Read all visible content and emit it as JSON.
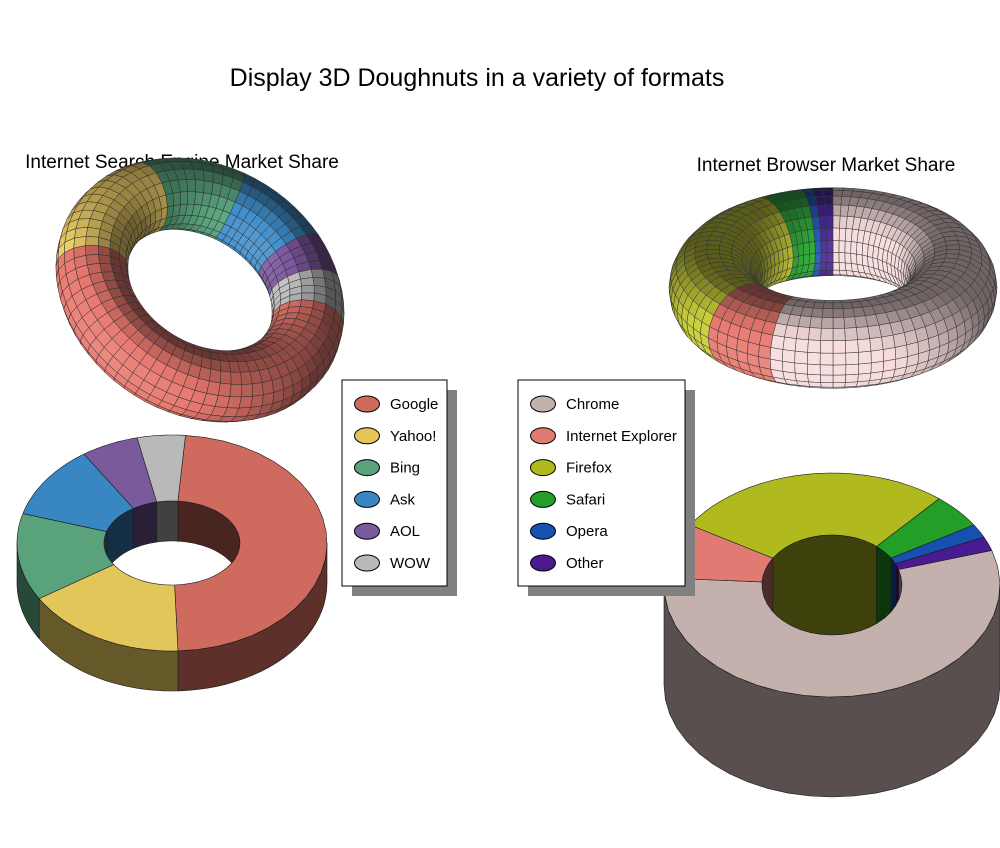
{
  "page": {
    "title": "Display 3D Doughnuts in a variety of formats"
  },
  "chart_data": [
    {
      "type": "pie",
      "title": "Internet Search Engine Market Share",
      "style": "torus",
      "categories": [
        "Google",
        "Yahoo!",
        "Bing",
        "Ask",
        "AOL",
        "WOW"
      ],
      "values": [
        48,
        17,
        13,
        11,
        6,
        5
      ],
      "colors": [
        "#e8786e",
        "#f3d46a",
        "#5aa47e",
        "#3f8ecb",
        "#7d55a0",
        "#bfbfbf"
      ]
    },
    {
      "type": "pie",
      "title": "",
      "style": "ring",
      "categories": [
        "Google",
        "Yahoo!",
        "Bing",
        "Ask",
        "AOL",
        "WOW"
      ],
      "values": [
        48,
        17,
        13,
        11,
        6,
        5
      ],
      "colors": [
        "#cf6a5e",
        "#e2c65a",
        "#5aa27c",
        "#3887c2",
        "#7a5a9c",
        "#b9b9b9"
      ],
      "legend": {
        "position": "between-charts",
        "entries": [
          "Google",
          "Yahoo!",
          "Bing",
          "Ask",
          "AOL",
          "WOW"
        ]
      }
    },
    {
      "type": "pie",
      "title": "Internet Browser Market Share",
      "style": "torus",
      "categories": [
        "Chrome",
        "Internet Explorer",
        "Firefox",
        "Safari",
        "Opera",
        "Other"
      ],
      "values": [
        56,
        8,
        27,
        5,
        2,
        2
      ],
      "colors": [
        "#f7dcdc",
        "#e8786e",
        "#c9cf3a",
        "#2faa3a",
        "#2a58b8",
        "#4a2a9a"
      ]
    },
    {
      "type": "pie",
      "title": "",
      "style": "ring",
      "categories": [
        "Chrome",
        "Internet Explorer",
        "Firefox",
        "Safari",
        "Opera",
        "Other"
      ],
      "values": [
        56,
        8,
        27,
        5,
        2,
        2
      ],
      "colors": [
        "#c4b0ad",
        "#e07a72",
        "#b0ba1e",
        "#239e26",
        "#1650b0",
        "#4a1a90"
      ],
      "legend": {
        "position": "between-charts",
        "entries": [
          "Chrome",
          "Internet Explorer",
          "Firefox",
          "Safari",
          "Opera",
          "Other"
        ]
      }
    }
  ]
}
